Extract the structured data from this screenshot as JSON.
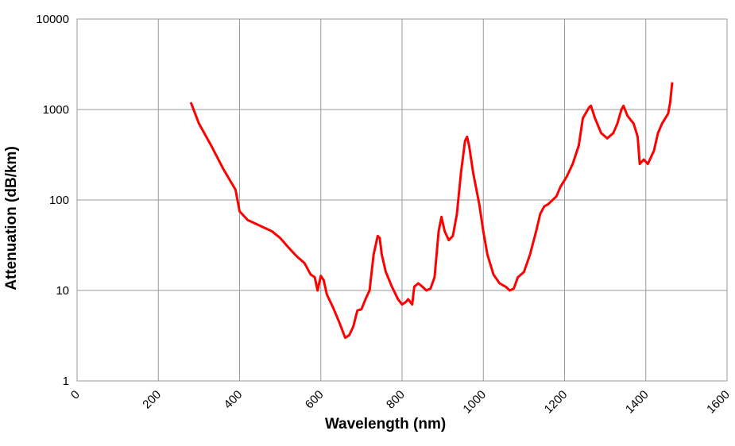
{
  "chart_data": {
    "type": "line",
    "xlabel": "Wavelength (nm)",
    "ylabel": "Attenuation (dB/km)",
    "x": [
      280,
      300,
      330,
      360,
      390,
      400,
      420,
      450,
      480,
      500,
      520,
      540,
      560,
      575,
      585,
      592,
      600,
      607,
      615,
      630,
      645,
      660,
      670,
      680,
      690,
      700,
      710,
      720,
      730,
      740,
      745,
      750,
      760,
      775,
      790,
      800,
      810,
      815,
      825,
      830,
      840,
      850,
      860,
      870,
      880,
      885,
      890,
      897,
      905,
      915,
      925,
      935,
      945,
      955,
      960,
      965,
      975,
      990,
      1000,
      1010,
      1025,
      1040,
      1055,
      1065,
      1075,
      1085,
      1100,
      1115,
      1130,
      1140,
      1150,
      1160,
      1180,
      1190,
      1205,
      1220,
      1235,
      1245,
      1260,
      1265,
      1275,
      1290,
      1305,
      1320,
      1330,
      1340,
      1345,
      1355,
      1370,
      1380,
      1385,
      1395,
      1405,
      1420,
      1430,
      1440,
      1455,
      1460,
      1465
    ],
    "series": [
      {
        "name": "Attenuation",
        "color": "#ff0000",
        "values": [
          1200,
          700,
          400,
          220,
          130,
          75,
          60,
          52,
          45,
          38,
          30,
          24,
          20,
          15,
          14,
          10,
          14.5,
          13,
          9,
          6.5,
          4.5,
          3,
          3.2,
          4,
          6,
          6.2,
          8,
          10,
          25,
          40,
          38,
          25,
          16,
          11,
          8,
          7,
          7.5,
          8,
          7,
          11,
          12,
          11,
          10,
          10.5,
          14,
          25,
          45,
          65,
          45,
          36,
          40,
          70,
          200,
          450,
          500,
          400,
          200,
          90,
          45,
          25,
          15,
          12,
          11,
          10,
          10.5,
          14,
          16,
          25,
          45,
          70,
          85,
          90,
          110,
          140,
          180,
          250,
          400,
          800,
          1050,
          1100,
          800,
          550,
          480,
          550,
          700,
          1000,
          1100,
          850,
          700,
          500,
          250,
          280,
          250,
          350,
          550,
          700,
          900,
          1200,
          2000
        ]
      }
    ],
    "xlim": [
      0,
      1600
    ],
    "xticks": [
      0,
      200,
      400,
      600,
      800,
      1000,
      1200,
      1400,
      1600
    ],
    "ylim": [
      1,
      10000
    ],
    "yticks": [
      1,
      10,
      100,
      1000,
      10000
    ],
    "log_y": true,
    "grid": true
  }
}
